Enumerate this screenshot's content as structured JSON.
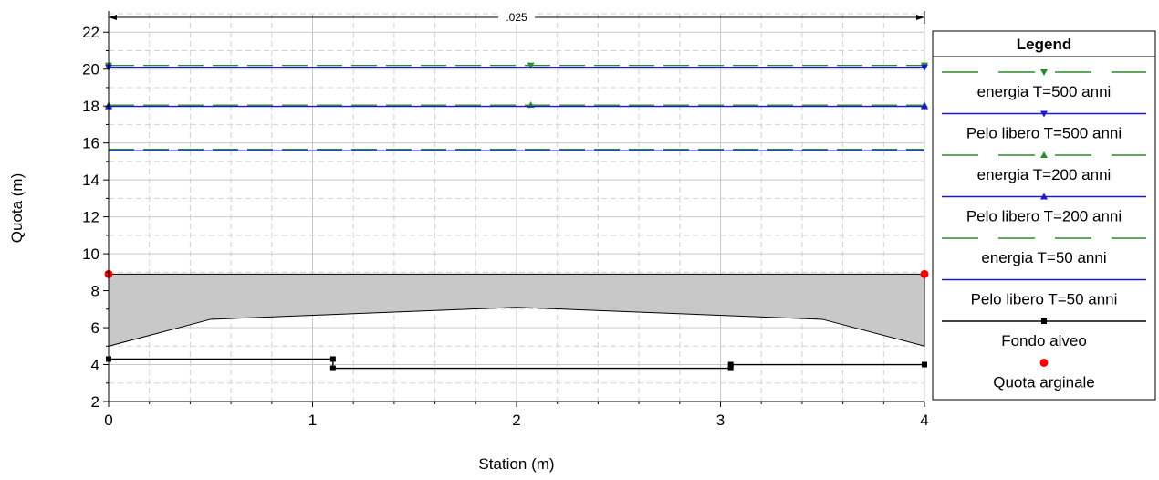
{
  "chart_data": {
    "type": "line",
    "xlabel": "Station (m)",
    "ylabel": "Quota (m)",
    "xlim": [
      0,
      4
    ],
    "ylim": [
      2,
      23
    ],
    "x_ticks": [
      "0",
      "1",
      "2",
      "3",
      "4"
    ],
    "y_ticks": [
      "2",
      "4",
      "6",
      "8",
      "10",
      "12",
      "14",
      "16",
      "18",
      "20",
      "22"
    ],
    "grid": true,
    "annotation": ".025",
    "legend_title": "Legend",
    "legend_position": "right",
    "series": [
      {
        "name": "energia T=500 anni",
        "color": "#2e8b2e",
        "style": "dashed",
        "marker": "triangle-down",
        "x": [
          0,
          2.07,
          4
        ],
        "y": [
          20.2,
          20.2,
          20.2
        ]
      },
      {
        "name": "Pelo libero T=500 anni",
        "color": "#1a1acc",
        "style": "solid",
        "marker": "triangle-down",
        "x": [
          0,
          4
        ],
        "y": [
          20.1,
          20.1
        ]
      },
      {
        "name": "energia T=200 anni",
        "color": "#2e8b2e",
        "style": "dashed",
        "marker": "triangle-up",
        "x": [
          0,
          2.07,
          4
        ],
        "y": [
          18.05,
          18.05,
          18.05
        ]
      },
      {
        "name": "Pelo libero T=200 anni",
        "color": "#1a1acc",
        "style": "solid",
        "marker": "triangle-up",
        "x": [
          0,
          4
        ],
        "y": [
          17.98,
          17.98
        ]
      },
      {
        "name": "energia T=50 anni",
        "color": "#2e8b2e",
        "style": "dashed",
        "marker": "none",
        "x": [
          0,
          4
        ],
        "y": [
          15.65,
          15.65
        ]
      },
      {
        "name": "Pelo libero T=50 anni",
        "color": "#1a1acc",
        "style": "solid",
        "marker": "none",
        "x": [
          0,
          4
        ],
        "y": [
          15.58,
          15.58
        ]
      },
      {
        "name": "Fondo alveo",
        "color": "#000000",
        "style": "solid",
        "marker": "square",
        "x": [
          0,
          1.1,
          1.1,
          3.05,
          3.05,
          4
        ],
        "y": [
          4.3,
          4.3,
          3.8,
          3.8,
          4.0,
          4.0
        ]
      },
      {
        "name": "Quota arginale",
        "color": "#ff0000",
        "style": "none",
        "marker": "circle",
        "x": [
          0,
          4
        ],
        "y": [
          8.9,
          8.9
        ]
      }
    ],
    "bridge_deck": {
      "fill": "#c8c8c8",
      "top": [
        [
          0,
          8.9
        ],
        [
          4,
          8.9
        ]
      ],
      "bottom": [
        [
          0,
          5.0
        ],
        [
          0.5,
          6.45
        ],
        [
          2,
          7.1
        ],
        [
          3.5,
          6.45
        ],
        [
          4,
          5.0
        ]
      ]
    }
  }
}
